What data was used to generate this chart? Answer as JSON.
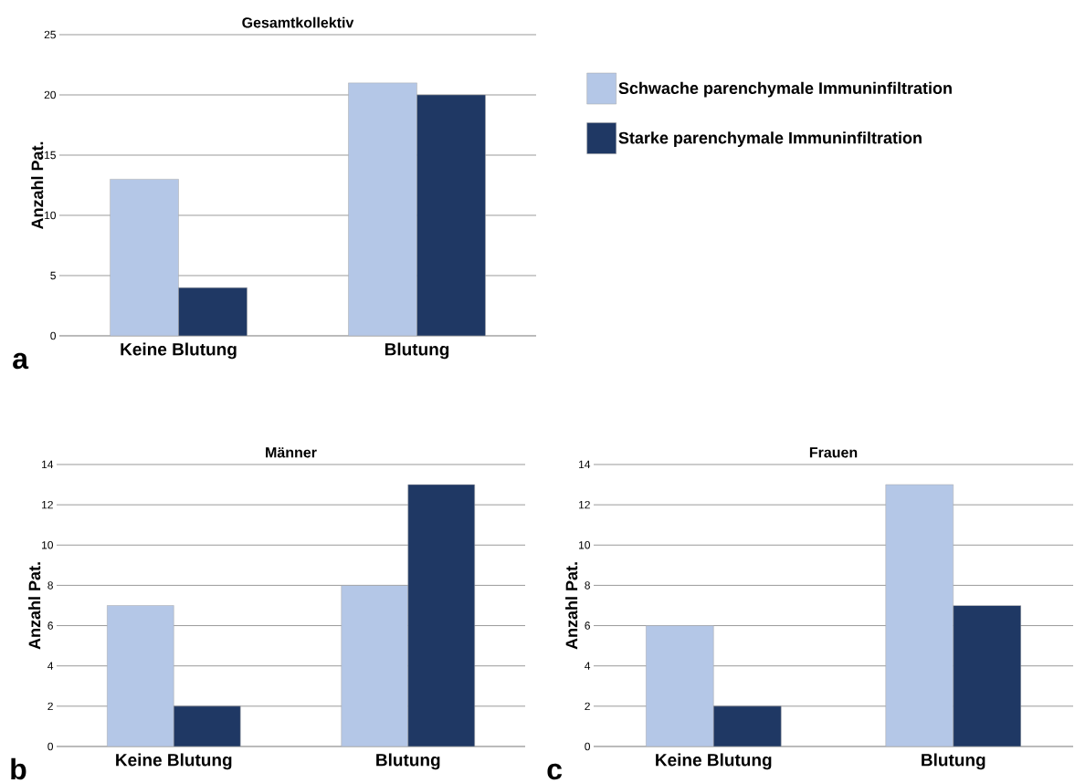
{
  "chart_data": [
    {
      "type": "bar",
      "title": "Gesamtkollektiv",
      "ylabel": "Anzahl Pat.",
      "categories": [
        "Keine Blutung",
        "Blutung"
      ],
      "series": [
        {
          "name": "Schwache parenchymale Immuninfiltration",
          "color": "#b4c7e7",
          "values": [
            13,
            21
          ]
        },
        {
          "name": "Starke parenchymale Immuninfiltration",
          "color": "#1f3864",
          "values": [
            4,
            20
          ]
        }
      ],
      "ylim": [
        0,
        25
      ],
      "yticks": [
        0,
        5,
        10,
        15,
        20,
        25
      ],
      "grid": "y",
      "legend": "right",
      "annotations": [
        "a"
      ]
    },
    {
      "type": "bar",
      "title": "Männer",
      "ylabel": "Anzahl Pat.",
      "categories": [
        "Keine Blutung",
        "Blutung"
      ],
      "series": [
        {
          "color": "#b4c7e7",
          "values": [
            7,
            8
          ]
        },
        {
          "color": "#1f3864",
          "values": [
            2,
            13
          ]
        }
      ],
      "ylim": [
        0,
        14
      ],
      "yticks": [
        0,
        2,
        4,
        6,
        8,
        10,
        12,
        14
      ],
      "grid": "y",
      "annotations": [
        "b"
      ]
    },
    {
      "type": "bar",
      "title": "Frauen",
      "ylabel": "Anzahl Pat.",
      "categories": [
        "Keine Blutung",
        "Blutung"
      ],
      "series": [
        {
          "color": "#b4c7e7",
          "values": [
            6,
            13
          ]
        },
        {
          "color": "#1f3864",
          "values": [
            2,
            7
          ]
        }
      ],
      "ylim": [
        0,
        14
      ],
      "yticks": [
        0,
        2,
        4,
        6,
        8,
        10,
        12,
        14
      ],
      "grid": "y",
      "annotations": [
        "c"
      ]
    }
  ]
}
